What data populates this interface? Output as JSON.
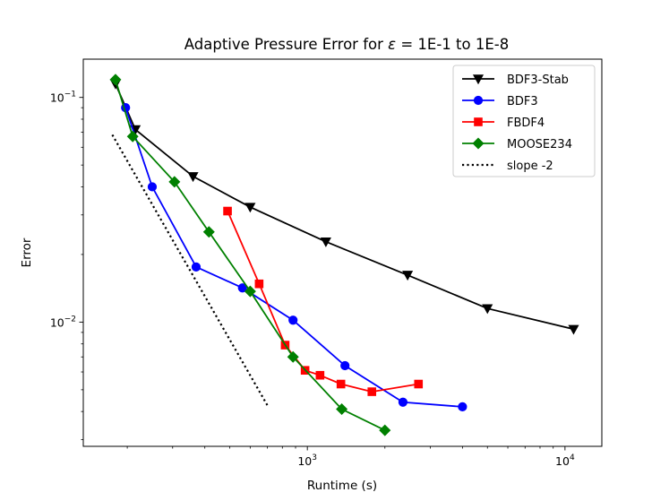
{
  "chart_data": {
    "type": "line",
    "title": "Adaptive Pressure Error for ε = 1E-1 to 1E-8",
    "title_prefix": "Adaptive Pressure Error for ",
    "title_epsilon": "ε",
    "title_suffix": " = 1E-1 to 1E-8",
    "xlabel": "Runtime (s)",
    "ylabel": "Error",
    "xscale": "log",
    "yscale": "log",
    "xlim": [
      135,
      13900
    ],
    "ylim": [
      0.0028,
      0.148
    ],
    "xticks": [
      {
        "value": 1000,
        "base": "10",
        "exp": "3"
      },
      {
        "value": 10000,
        "base": "10",
        "exp": "4"
      }
    ],
    "yticks": [
      {
        "value": 0.01,
        "base": "10",
        "exp": "−2"
      },
      {
        "value": 0.1,
        "base": "10",
        "exp": "−1"
      }
    ],
    "legend_position": "top-right",
    "series": [
      {
        "name": "BDF3-Stab",
        "color": "#000000",
        "marker": "triangle-down",
        "linestyle": "solid",
        "x": [
          180,
          215,
          360,
          600,
          1180,
          2450,
          5000,
          10800
        ],
        "y": [
          0.115,
          0.072,
          0.0445,
          0.0325,
          0.0228,
          0.0162,
          0.0115,
          0.0093
        ]
      },
      {
        "name": "BDF3",
        "color": "#0000ff",
        "marker": "circle",
        "linestyle": "solid",
        "x": [
          197,
          250,
          370,
          560,
          880,
          1400,
          2350,
          4000
        ],
        "y": [
          0.09,
          0.04,
          0.0176,
          0.0142,
          0.0102,
          0.0064,
          0.0044,
          0.0042
        ]
      },
      {
        "name": "FBDF4",
        "color": "#ff0000",
        "marker": "square",
        "linestyle": "solid",
        "x": [
          490,
          650,
          820,
          980,
          1120,
          1350,
          1780,
          2700
        ],
        "y": [
          0.0312,
          0.0148,
          0.0079,
          0.0061,
          0.0058,
          0.0053,
          0.0049,
          0.0053
        ]
      },
      {
        "name": "MOOSE234",
        "color": "#008000",
        "marker": "diamond",
        "linestyle": "solid",
        "x": [
          180,
          210,
          305,
          415,
          600,
          880,
          1360,
          2000
        ],
        "y": [
          0.12,
          0.067,
          0.0421,
          0.0252,
          0.0137,
          0.007,
          0.0041,
          0.0033
        ]
      },
      {
        "name": "slope -2",
        "color": "#000000",
        "marker": "none",
        "linestyle": "dotted",
        "x": [
          175,
          705
        ],
        "y": [
          0.0682,
          0.0042
        ]
      }
    ]
  }
}
